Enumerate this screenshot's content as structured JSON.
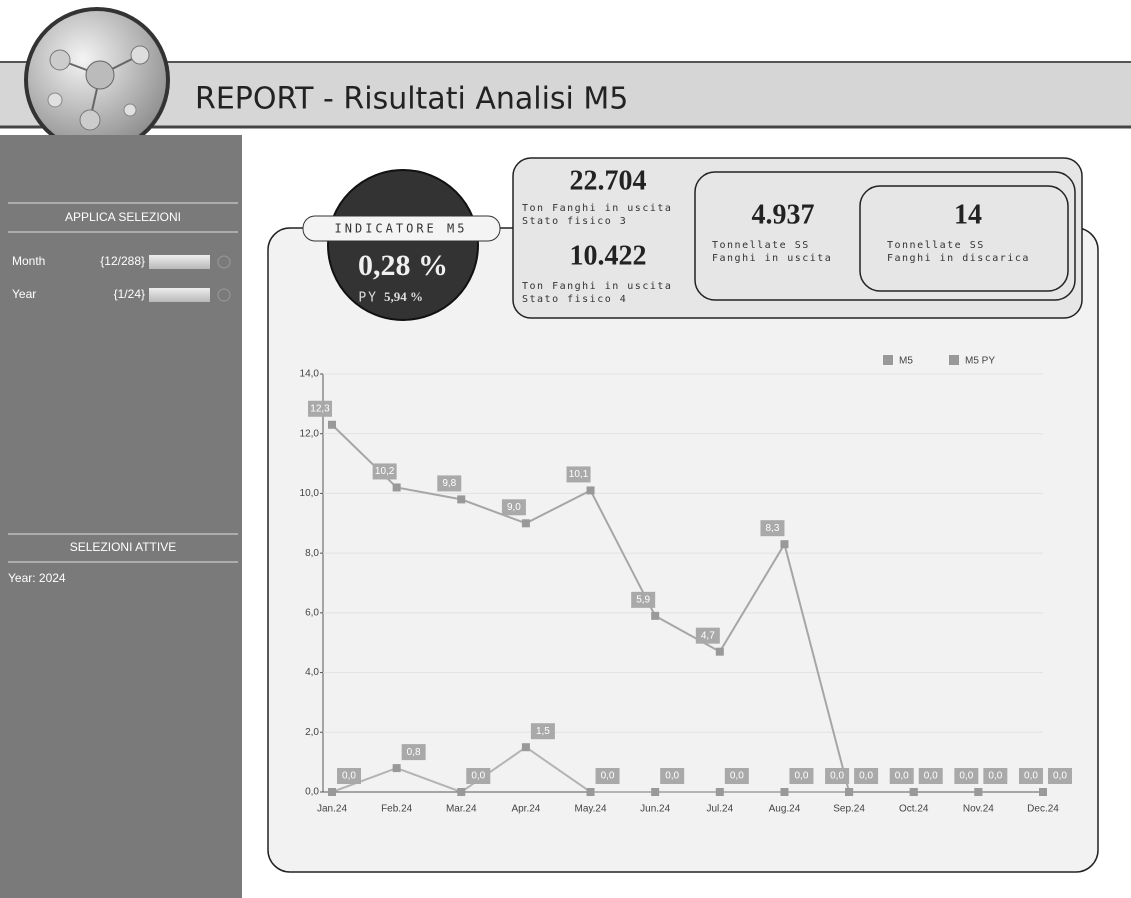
{
  "header": {
    "title": "REPORT - Risultati Analisi M5"
  },
  "sidebar": {
    "apply_title": "APPLICA SELEZIONI",
    "filters": [
      {
        "label": "Month",
        "value": "{12/288}"
      },
      {
        "label": "Year",
        "value": "{1/24}"
      }
    ],
    "active_title": "SELEZIONI ATTIVE",
    "active": [
      "Year: 2024"
    ]
  },
  "indicator": {
    "title": "INDICATORE M5",
    "value": "0,28 %",
    "py_label": "PY",
    "py_value": "5,94 %"
  },
  "kpis": [
    {
      "value": "22.704",
      "lines": [
        "Ton Fanghi in uscita",
        "Stato fisico 3"
      ]
    },
    {
      "value": "10.422",
      "lines": [
        "Ton Fanghi in uscita",
        "Stato fisico 4"
      ]
    },
    {
      "value": "4.937",
      "lines": [
        "Tonnellate SS",
        "Fanghi in uscita"
      ]
    },
    {
      "value": "14",
      "lines": [
        "Tonnellate SS",
        "Fanghi in discarica"
      ]
    }
  ],
  "chart_data": {
    "type": "line",
    "categories": [
      "Jan.24",
      "Feb.24",
      "Mar.24",
      "Apr.24",
      "May.24",
      "Jun.24",
      "Jul.24",
      "Aug.24",
      "Sep.24",
      "Oct.24",
      "Nov.24",
      "Dec.24"
    ],
    "series": [
      {
        "name": "M5",
        "color": "#b4b4b4",
        "values": [
          0,
          0.8,
          0,
          1.5,
          0,
          0,
          0,
          0,
          0,
          0,
          0,
          0
        ],
        "value_labels": [
          "0,0",
          "0,8",
          "0,0",
          "1,5",
          "0,0",
          "0,0",
          "0,0",
          "0,0",
          "0,0",
          "0,0",
          "0,0",
          "0,0"
        ]
      },
      {
        "name": "M5 PY",
        "color": "#a6a6a6",
        "values": [
          12.3,
          10.2,
          9.8,
          9.0,
          10.1,
          5.9,
          4.7,
          8.3,
          0,
          0,
          0,
          0
        ],
        "value_labels": [
          "12,3",
          "10,2",
          "9,8",
          "9,0",
          "10,1",
          "5,9",
          "4,7",
          "8,3",
          "0,0",
          "0,0",
          "0,0",
          "0,0"
        ]
      }
    ],
    "ylim": [
      0,
      14
    ],
    "yticks": [
      {
        "value": 0,
        "label": "0,0"
      },
      {
        "value": 2,
        "label": "2,0"
      },
      {
        "value": 4,
        "label": "4,0"
      },
      {
        "value": 6,
        "label": "6,0"
      },
      {
        "value": 8,
        "label": "8,0"
      },
      {
        "value": 10,
        "label": "10,0"
      },
      {
        "value": 12,
        "label": "12,0"
      },
      {
        "value": 14,
        "label": "14,0"
      }
    ],
    "grid": true,
    "legend": "top-right"
  }
}
